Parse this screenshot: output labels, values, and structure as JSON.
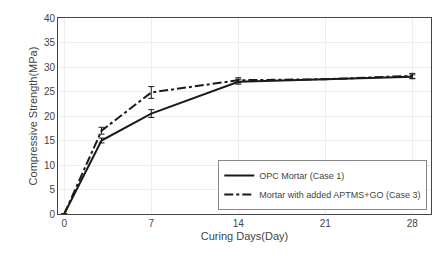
{
  "chart_data": {
    "type": "line",
    "x": [
      0,
      3,
      7,
      14,
      21,
      28
    ],
    "series": [
      {
        "name": "OPC Mortar (Case 1)",
        "color": "#1a1a1a",
        "line_style": "solid",
        "values": [
          0,
          15.0,
          20.5,
          27.0,
          27.5,
          28.0
        ],
        "errors": [
          0,
          0.5,
          0.8,
          0.5,
          0,
          0.4
        ]
      },
      {
        "name": "Mortar with added APTMS+GO (Case 3)",
        "color": "#1a1a1a",
        "line_style": "dashdot",
        "values": [
          0,
          17.0,
          24.8,
          27.3,
          27.5,
          28.2
        ],
        "errors": [
          0,
          0.7,
          1.2,
          0.5,
          0,
          0.5
        ]
      }
    ],
    "xlabel": "Curing Days(Day)",
    "ylabel": "Compressive Strength(MPa)",
    "xlim": [
      -0.5,
      29.5
    ],
    "ylim": [
      0,
      40
    ],
    "xticks": [
      0,
      7,
      14,
      21,
      28
    ],
    "yticks": [
      0,
      5,
      10,
      15,
      20,
      25,
      30,
      35,
      40
    ],
    "grid": true,
    "legend": "lower right"
  }
}
